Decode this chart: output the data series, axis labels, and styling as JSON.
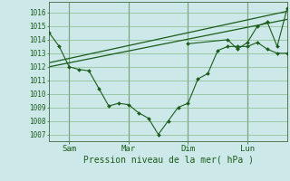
{
  "background_color": "#cce8e8",
  "grid_color": "#88bb88",
  "line_color": "#1a5c1a",
  "marker_color": "#1a5c1a",
  "text_color": "#1a5c1a",
  "xlabel": "Pression niveau de la mer( hPa )",
  "ylim": [
    1006.5,
    1016.8
  ],
  "yticks": [
    1007,
    1008,
    1009,
    1010,
    1011,
    1012,
    1013,
    1014,
    1015,
    1016
  ],
  "x_tick_labels": [
    "Sam",
    "Mar",
    "Dim",
    "Lun"
  ],
  "x_tick_positions": [
    24,
    96,
    168,
    240
  ],
  "xlim": [
    0,
    288
  ],
  "vertical_lines": [
    24,
    96,
    168,
    240
  ],
  "series1_x": [
    0,
    12,
    24,
    36,
    48,
    60,
    72,
    84,
    96,
    108,
    120,
    132,
    144,
    156,
    168,
    180,
    192,
    204,
    216,
    228,
    240,
    252,
    264,
    276,
    288
  ],
  "series1_y": [
    1014.5,
    1013.5,
    1012.0,
    1011.8,
    1011.7,
    1010.4,
    1009.1,
    1009.3,
    1009.2,
    1008.6,
    1008.2,
    1007.0,
    1008.0,
    1009.0,
    1009.3,
    1011.1,
    1011.5,
    1013.2,
    1013.5,
    1013.5,
    1013.5,
    1013.8,
    1013.3,
    1013.0,
    1013.0
  ],
  "series2_x": [
    0,
    288
  ],
  "series2_y": [
    1012.0,
    1015.5
  ],
  "series3_x": [
    0,
    288
  ],
  "series3_y": [
    1012.3,
    1016.1
  ],
  "series4_x": [
    168,
    216,
    228,
    240,
    252,
    264,
    276,
    288
  ],
  "series4_y": [
    1013.7,
    1014.0,
    1013.3,
    1013.8,
    1015.0,
    1015.3,
    1013.5,
    1016.3
  ]
}
